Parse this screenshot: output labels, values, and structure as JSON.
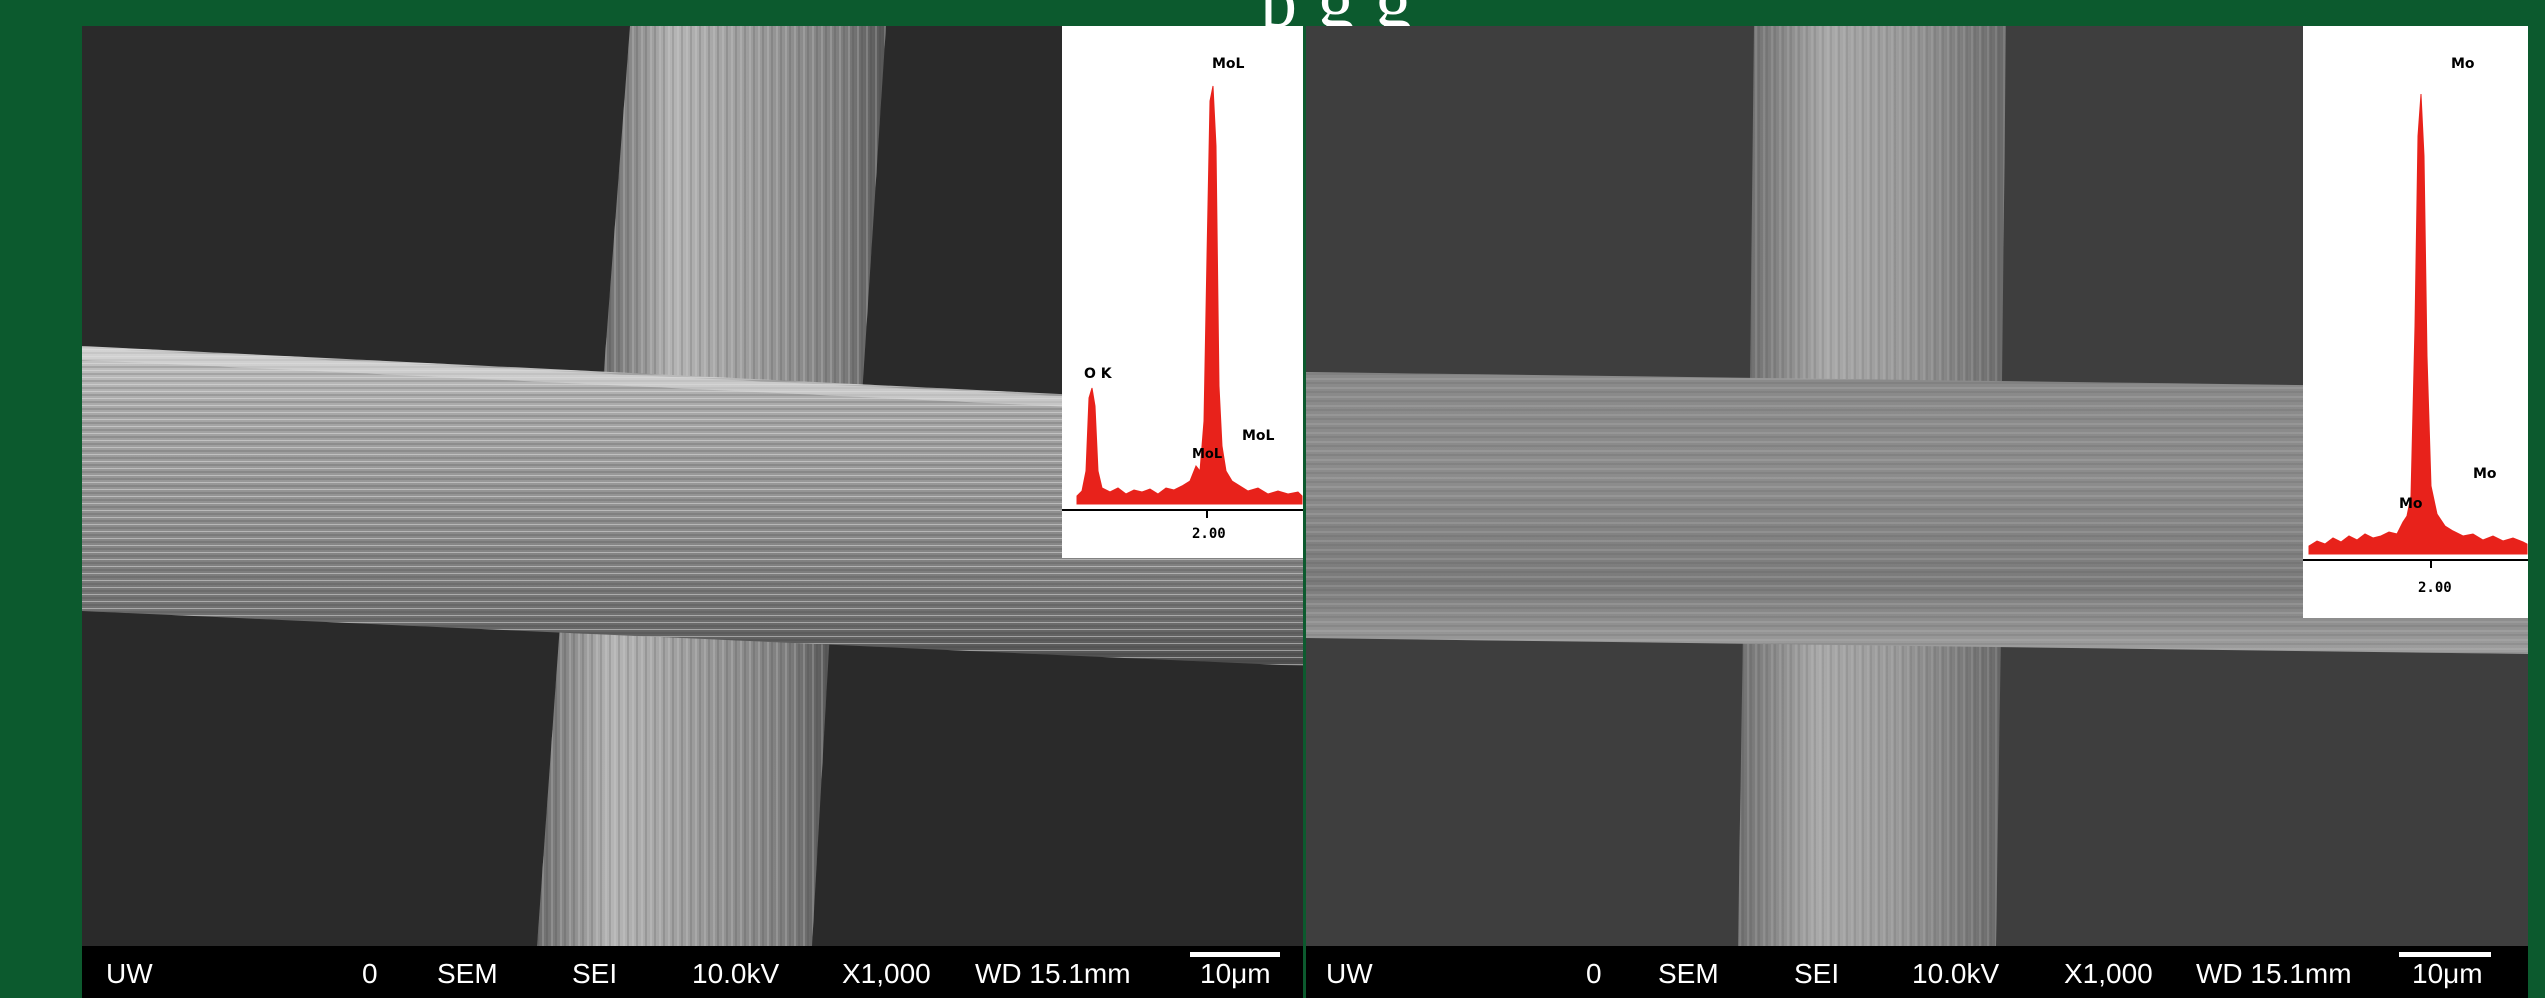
{
  "header": {
    "title_fragment": "p      g      g"
  },
  "panels": [
    {
      "eds": {
        "peak_labels": [
          "MoL",
          "O K",
          "MoL",
          "MoL"
        ],
        "axis_tick": "2.00",
        "bar_color": "#e8221b"
      },
      "info": {
        "lab": "UW",
        "zero": "0",
        "mode": "SEM",
        "detector": "SEI",
        "voltage": "10.0kV",
        "magnification": "X1,000",
        "wd": "WD 15.1mm",
        "scale": "10μm"
      }
    },
    {
      "eds": {
        "peak_labels": [
          "Mo",
          "Mo",
          "Mo"
        ],
        "axis_tick": "2.00",
        "bar_color": "#e8221b"
      },
      "info": {
        "lab": "UW",
        "zero": "0",
        "mode": "SEM",
        "detector": "SEI",
        "voltage": "10.0kV",
        "magnification": "X1,000",
        "wd": "WD 15.1mm",
        "scale": "10μm"
      }
    }
  ]
}
